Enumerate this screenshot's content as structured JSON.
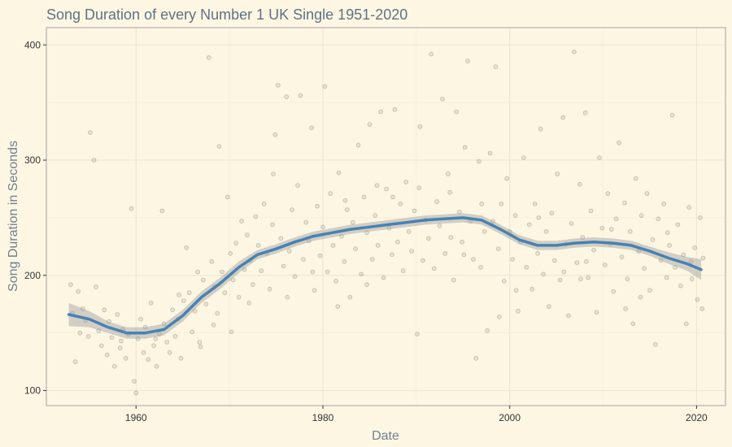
{
  "chart_data": {
    "type": "scatter",
    "title": "Song Duration of every Number 1 UK Single 1951-2020",
    "xlabel": "Date",
    "ylabel": "Song Duration in Seconds",
    "xlim": [
      1950.4,
      2023.1
    ],
    "ylim": [
      87,
      415
    ],
    "x_ticks": [
      1960,
      1980,
      2000,
      2020
    ],
    "x_tick_labels": [
      "1960",
      "1980",
      "2000",
      "2020"
    ],
    "y_ticks": [
      100,
      200,
      300,
      400
    ],
    "y_tick_labels": [
      "100",
      "200",
      "300",
      "400"
    ],
    "grid": true,
    "legend": "none",
    "colors": {
      "points": "#9c9580",
      "trend": "#4682b4",
      "ribbon": "#9e9e9e",
      "background": "#fdf6e3"
    },
    "smooth": {
      "x": [
        1952.8,
        1955,
        1957,
        1959,
        1961,
        1963,
        1965,
        1967,
        1969,
        1971,
        1973,
        1975,
        1977,
        1979,
        1981,
        1983,
        1985,
        1987,
        1989,
        1991,
        1993,
        1995,
        1997,
        1999,
        2001,
        2003,
        2005,
        2007,
        2009,
        2011,
        2013,
        2015,
        2017,
        2019,
        2020.5
      ],
      "y": [
        166,
        162,
        155,
        150,
        150,
        153,
        165,
        181,
        193,
        207,
        218,
        223,
        229,
        234,
        237,
        240,
        242,
        244,
        246,
        248,
        249,
        250,
        248,
        240,
        231,
        226,
        226,
        228,
        229,
        228,
        226,
        221,
        215,
        210,
        205
      ],
      "upper": [
        176,
        169,
        160,
        155,
        155,
        158,
        170,
        186,
        198,
        212,
        222,
        227,
        233,
        238,
        241,
        244,
        246,
        248,
        250,
        252,
        253,
        254,
        252,
        244,
        235,
        230,
        230,
        232,
        233,
        232,
        230,
        225,
        220,
        216,
        214
      ],
      "lower": [
        156,
        155,
        150,
        145,
        145,
        148,
        160,
        176,
        188,
        202,
        214,
        219,
        225,
        230,
        233,
        236,
        238,
        240,
        242,
        244,
        245,
        246,
        244,
        236,
        227,
        222,
        222,
        224,
        225,
        224,
        222,
        217,
        210,
        204,
        196
      ]
    },
    "points": [
      [
        1953.0,
        192
      ],
      [
        1953.2,
        167
      ],
      [
        1953.5,
        125
      ],
      [
        1953.8,
        186
      ],
      [
        1954.0,
        150
      ],
      [
        1954.3,
        171
      ],
      [
        1954.6,
        161
      ],
      [
        1954.9,
        147
      ],
      [
        1955.1,
        324
      ],
      [
        1955.5,
        300
      ],
      [
        1955.7,
        190
      ],
      [
        1956.0,
        152
      ],
      [
        1956.3,
        139
      ],
      [
        1956.6,
        170
      ],
      [
        1956.9,
        131
      ],
      [
        1957.1,
        160
      ],
      [
        1957.4,
        146
      ],
      [
        1957.7,
        121
      ],
      [
        1958.0,
        166
      ],
      [
        1958.3,
        137
      ],
      [
        1958.6,
        153
      ],
      [
        1958.9,
        128
      ],
      [
        1959.2,
        149
      ],
      [
        1959.5,
        258
      ],
      [
        1959.8,
        108
      ],
      [
        1960.0,
        98
      ],
      [
        1960.2,
        145
      ],
      [
        1960.5,
        162
      ],
      [
        1960.8,
        133
      ],
      [
        1961.0,
        155
      ],
      [
        1961.3,
        127
      ],
      [
        1961.6,
        176
      ],
      [
        1961.9,
        139
      ],
      [
        1962.2,
        121
      ],
      [
        1962.5,
        149
      ],
      [
        1962.8,
        256
      ],
      [
        1963.0,
        158
      ],
      [
        1963.3,
        142
      ],
      [
        1963.6,
        133
      ],
      [
        1963.9,
        170
      ],
      [
        1964.2,
        147
      ],
      [
        1964.5,
        162
      ],
      [
        1964.8,
        128
      ],
      [
        1965.1,
        178
      ],
      [
        1965.4,
        224
      ],
      [
        1965.7,
        185
      ],
      [
        1966.0,
        151
      ],
      [
        1966.3,
        169
      ],
      [
        1966.6,
        203
      ],
      [
        1966.9,
        138
      ],
      [
        1967.2,
        196
      ],
      [
        1967.5,
        175
      ],
      [
        1967.8,
        389
      ],
      [
        1968.1,
        212
      ],
      [
        1968.4,
        190
      ],
      [
        1968.7,
        167
      ],
      [
        1968.9,
        312
      ],
      [
        1969.2,
        203
      ],
      [
        1969.5,
        185
      ],
      [
        1969.8,
        268
      ],
      [
        1970.1,
        219
      ],
      [
        1970.4,
        196
      ],
      [
        1970.7,
        228
      ],
      [
        1971.0,
        181
      ],
      [
        1971.3,
        247
      ],
      [
        1971.6,
        205
      ],
      [
        1971.9,
        235
      ],
      [
        1972.2,
        213
      ],
      [
        1972.5,
        192
      ],
      [
        1972.8,
        251
      ],
      [
        1973.1,
        226
      ],
      [
        1973.4,
        204
      ],
      [
        1973.7,
        262
      ],
      [
        1974.0,
        219
      ],
      [
        1974.3,
        188
      ],
      [
        1974.6,
        244
      ],
      [
        1974.9,
        322
      ],
      [
        1975.2,
        365
      ],
      [
        1975.5,
        232
      ],
      [
        1975.8,
        208
      ],
      [
        1976.1,
        355
      ],
      [
        1976.4,
        221
      ],
      [
        1976.7,
        257
      ],
      [
        1977.0,
        199
      ],
      [
        1977.3,
        278
      ],
      [
        1977.6,
        356
      ],
      [
        1977.9,
        214
      ],
      [
        1978.2,
        246
      ],
      [
        1978.5,
        230
      ],
      [
        1978.8,
        328
      ],
      [
        1979.1,
        187
      ],
      [
        1979.4,
        260
      ],
      [
        1979.7,
        217
      ],
      [
        1980.0,
        242
      ],
      [
        1980.2,
        364
      ],
      [
        1980.5,
        203
      ],
      [
        1980.8,
        271
      ],
      [
        1981.1,
        226
      ],
      [
        1981.4,
        195
      ],
      [
        1981.7,
        289
      ],
      [
        1982.0,
        234
      ],
      [
        1982.3,
        212
      ],
      [
        1982.6,
        257
      ],
      [
        1982.9,
        181
      ],
      [
        1983.2,
        246
      ],
      [
        1983.5,
        223
      ],
      [
        1983.8,
        313
      ],
      [
        1984.1,
        201
      ],
      [
        1984.4,
        268
      ],
      [
        1984.7,
        237
      ],
      [
        1985.0,
        331
      ],
      [
        1985.3,
        214
      ],
      [
        1985.6,
        252
      ],
      [
        1985.9,
        226
      ],
      [
        1986.2,
        342
      ],
      [
        1986.5,
        198
      ],
      [
        1986.8,
        275
      ],
      [
        1987.1,
        241
      ],
      [
        1987.4,
        218
      ],
      [
        1987.7,
        344
      ],
      [
        1988.0,
        229
      ],
      [
        1988.3,
        262
      ],
      [
        1988.6,
        204
      ],
      [
        1988.9,
        281
      ],
      [
        1989.2,
        238
      ],
      [
        1989.5,
        221
      ],
      [
        1989.8,
        256
      ],
      [
        1990.1,
        149
      ],
      [
        1990.4,
        329
      ],
      [
        1990.7,
        213
      ],
      [
        1991.0,
        248
      ],
      [
        1991.3,
        232
      ],
      [
        1991.6,
        392
      ],
      [
        1991.9,
        206
      ],
      [
        1992.2,
        264
      ],
      [
        1992.5,
        243
      ],
      [
        1992.8,
        353
      ],
      [
        1993.1,
        219
      ],
      [
        1993.4,
        288
      ],
      [
        1993.7,
        233
      ],
      [
        1994.0,
        196
      ],
      [
        1994.3,
        342
      ],
      [
        1994.6,
        255
      ],
      [
        1994.9,
        229
      ],
      [
        1995.2,
        311
      ],
      [
        1995.5,
        386
      ],
      [
        1995.8,
        247
      ],
      [
        1996.1,
        214
      ],
      [
        1996.4,
        128
      ],
      [
        1996.7,
        299
      ],
      [
        1997.0,
        262
      ],
      [
        1997.3,
        238
      ],
      [
        1997.6,
        152
      ],
      [
        1997.9,
        306
      ],
      [
        1998.2,
        247
      ],
      [
        1998.5,
        381
      ],
      [
        1998.8,
        223
      ],
      [
        1999.1,
        262
      ],
      [
        1999.4,
        195
      ],
      [
        1999.7,
        284
      ],
      [
        2000.0,
        238
      ],
      [
        2000.3,
        214
      ],
      [
        2000.6,
        252
      ],
      [
        2000.9,
        169
      ],
      [
        2001.2,
        229
      ],
      [
        2001.5,
        302
      ],
      [
        2001.8,
        207
      ],
      [
        2002.1,
        244
      ],
      [
        2002.4,
        188
      ],
      [
        2002.7,
        262
      ],
      [
        2003.0,
        219
      ],
      [
        2003.3,
        327
      ],
      [
        2003.6,
        201
      ],
      [
        2003.9,
        238
      ],
      [
        2004.2,
        173
      ],
      [
        2004.5,
        254
      ],
      [
        2004.8,
        213
      ],
      [
        2005.1,
        288
      ],
      [
        2005.4,
        196
      ],
      [
        2005.7,
        337
      ],
      [
        2006.0,
        227
      ],
      [
        2006.3,
        165
      ],
      [
        2006.6,
        245
      ],
      [
        2006.9,
        394
      ],
      [
        2007.2,
        211
      ],
      [
        2007.5,
        279
      ],
      [
        2007.8,
        233
      ],
      [
        2008.1,
        341
      ],
      [
        2008.4,
        198
      ],
      [
        2008.7,
        256
      ],
      [
        2009.0,
        222
      ],
      [
        2009.3,
        168
      ],
      [
        2009.6,
        302
      ],
      [
        2009.9,
        241
      ],
      [
        2010.2,
        209
      ],
      [
        2010.5,
        271
      ],
      [
        2010.8,
        227
      ],
      [
        2011.1,
        186
      ],
      [
        2011.4,
        249
      ],
      [
        2011.7,
        315
      ],
      [
        2012.0,
        216
      ],
      [
        2012.3,
        263
      ],
      [
        2012.6,
        197
      ],
      [
        2012.9,
        238
      ],
      [
        2013.2,
        158
      ],
      [
        2013.5,
        284
      ],
      [
        2013.8,
        221
      ],
      [
        2014.1,
        252
      ],
      [
        2014.4,
        206
      ],
      [
        2014.7,
        271
      ],
      [
        2015.0,
        187
      ],
      [
        2015.3,
        231
      ],
      [
        2015.6,
        140
      ],
      [
        2015.9,
        249
      ],
      [
        2016.2,
        213
      ],
      [
        2016.5,
        262
      ],
      [
        2016.8,
        198
      ],
      [
        2017.1,
        226
      ],
      [
        2017.4,
        339
      ],
      [
        2017.7,
        207
      ],
      [
        2018.0,
        244
      ],
      [
        2018.3,
        191
      ],
      [
        2018.6,
        218
      ],
      [
        2018.9,
        158
      ],
      [
        2019.2,
        259
      ],
      [
        2019.5,
        197
      ],
      [
        2019.8,
        224
      ],
      [
        2020.1,
        179
      ],
      [
        2020.4,
        250
      ],
      [
        2020.6,
        171
      ],
      [
        2020.7,
        215
      ],
      [
        1962.1,
        145
      ],
      [
        1964.6,
        183
      ],
      [
        1968.3,
        157
      ],
      [
        1972.1,
        176
      ],
      [
        1976.2,
        181
      ],
      [
        1978.9,
        203
      ],
      [
        1981.6,
        173
      ],
      [
        1984.7,
        192
      ],
      [
        1987.5,
        268
      ],
      [
        1990.3,
        276
      ],
      [
        1993.6,
        272
      ],
      [
        1996.9,
        207
      ],
      [
        2000.7,
        187
      ],
      [
        2003.1,
        250
      ],
      [
        2005.8,
        203
      ],
      [
        2008.2,
        212
      ],
      [
        2010.9,
        240
      ],
      [
        2014.0,
        181
      ],
      [
        2016.9,
        237
      ],
      [
        2019.4,
        212
      ],
      [
        1958.4,
        143
      ],
      [
        1966.8,
        142
      ],
      [
        1974.7,
        288
      ],
      [
        1985.8,
        278
      ],
      [
        1998.9,
        164
      ],
      [
        2007.6,
        197
      ],
      [
        2012.4,
        171
      ],
      [
        1995.1,
        218
      ],
      [
        1982.4,
        265
      ],
      [
        1970.2,
        151
      ]
    ]
  }
}
